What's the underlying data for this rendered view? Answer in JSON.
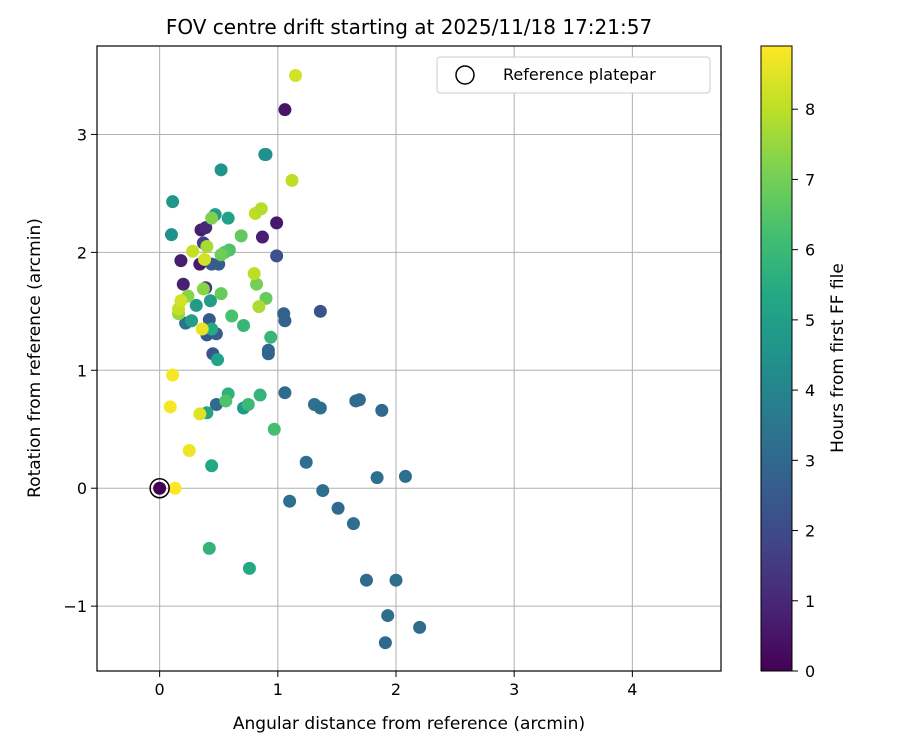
{
  "chart_data": {
    "type": "scatter",
    "title": "FOV centre drift starting at 2025/11/18 17:21:57",
    "xlabel": "Angular distance from reference (arcmin)",
    "ylabel": "Rotation from reference (arcmin)",
    "xlim": [
      -0.53,
      4.75
    ],
    "ylim": [
      -1.55,
      3.75
    ],
    "xticks": [
      0,
      1,
      2,
      3,
      4
    ],
    "xtick_labels": [
      "0",
      "1",
      "2",
      "3",
      "4"
    ],
    "yticks": [
      -1,
      0,
      1,
      2,
      3
    ],
    "ytick_labels": [
      "−1",
      "0",
      "1",
      "2",
      "3"
    ],
    "grid": true,
    "legend": {
      "position": "top-right",
      "label": "Reference platepar"
    },
    "reference": {
      "x": 0.0,
      "y": 0.0
    },
    "colorbar": {
      "label": "Hours from first FF file",
      "min": 0,
      "max": 8.9,
      "ticks": [
        0,
        1,
        2,
        3,
        4,
        5,
        6,
        7,
        8
      ],
      "tick_labels": [
        "0",
        "1",
        "2",
        "3",
        "4",
        "5",
        "6",
        "7",
        "8"
      ],
      "colormap": "viridis"
    },
    "points": [
      {
        "x": 1.06,
        "y": 3.21,
        "c": 0.5
      },
      {
        "x": 0.99,
        "y": 2.25,
        "c": 0.6
      },
      {
        "x": 0.87,
        "y": 2.13,
        "c": 0.8
      },
      {
        "x": 0.35,
        "y": 2.19,
        "c": 0.7
      },
      {
        "x": 0.39,
        "y": 2.21,
        "c": 1.0
      },
      {
        "x": 0.34,
        "y": 1.9,
        "c": 0.6
      },
      {
        "x": 0.18,
        "y": 1.93,
        "c": 0.7
      },
      {
        "x": 0.2,
        "y": 1.73,
        "c": 0.8
      },
      {
        "x": 0.37,
        "y": 2.08,
        "c": 1.7
      },
      {
        "x": 0.39,
        "y": 1.7,
        "c": 1.4
      },
      {
        "x": 0.99,
        "y": 1.97,
        "c": 2.2
      },
      {
        "x": 1.36,
        "y": 1.5,
        "c": 2.3
      },
      {
        "x": 0.45,
        "y": 1.14,
        "c": 2.4
      },
      {
        "x": 0.4,
        "y": 1.3,
        "c": 2.5
      },
      {
        "x": 0.42,
        "y": 1.43,
        "c": 2.5
      },
      {
        "x": 0.48,
        "y": 1.31,
        "c": 2.6
      },
      {
        "x": 0.44,
        "y": 1.9,
        "c": 2.6
      },
      {
        "x": 0.5,
        "y": 1.9,
        "c": 2.6
      },
      {
        "x": 1.05,
        "y": 1.48,
        "c": 2.8
      },
      {
        "x": 1.06,
        "y": 1.42,
        "c": 2.8
      },
      {
        "x": 0.92,
        "y": 1.17,
        "c": 2.9
      },
      {
        "x": 0.92,
        "y": 1.14,
        "c": 2.9
      },
      {
        "x": 0.22,
        "y": 1.4,
        "c": 3.3
      },
      {
        "x": 0.48,
        "y": 0.71,
        "c": 3.1
      },
      {
        "x": 1.06,
        "y": 0.81,
        "c": 3.1
      },
      {
        "x": 1.31,
        "y": 0.71,
        "c": 3.3
      },
      {
        "x": 1.36,
        "y": 0.68,
        "c": 3.2
      },
      {
        "x": 1.66,
        "y": 0.74,
        "c": 3.1
      },
      {
        "x": 1.69,
        "y": 0.75,
        "c": 3.1
      },
      {
        "x": 1.88,
        "y": 0.66,
        "c": 3.0
      },
      {
        "x": 1.24,
        "y": 0.22,
        "c": 3.2
      },
      {
        "x": 1.84,
        "y": 0.09,
        "c": 3.3
      },
      {
        "x": 2.08,
        "y": 0.1,
        "c": 3.2
      },
      {
        "x": 1.1,
        "y": -0.11,
        "c": 3.2
      },
      {
        "x": 1.38,
        "y": -0.02,
        "c": 3.2
      },
      {
        "x": 1.51,
        "y": -0.17,
        "c": 3.1
      },
      {
        "x": 1.64,
        "y": -0.3,
        "c": 3.2
      },
      {
        "x": 1.75,
        "y": -0.78,
        "c": 3.1
      },
      {
        "x": 2.0,
        "y": -0.78,
        "c": 3.2
      },
      {
        "x": 1.93,
        "y": -1.08,
        "c": 3.2
      },
      {
        "x": 1.91,
        "y": -1.31,
        "c": 3.0
      },
      {
        "x": 2.2,
        "y": -1.18,
        "c": 3.1
      },
      {
        "x": 0.9,
        "y": 2.83,
        "c": 4.5
      },
      {
        "x": 0.89,
        "y": 2.83,
        "c": 4.4
      },
      {
        "x": 0.52,
        "y": 2.7,
        "c": 4.6
      },
      {
        "x": 0.11,
        "y": 2.43,
        "c": 4.7
      },
      {
        "x": 0.1,
        "y": 2.15,
        "c": 4.4
      },
      {
        "x": 0.47,
        "y": 2.32,
        "c": 4.9
      },
      {
        "x": 0.58,
        "y": 2.29,
        "c": 5.1
      },
      {
        "x": 0.43,
        "y": 1.59,
        "c": 4.9
      },
      {
        "x": 0.31,
        "y": 1.55,
        "c": 4.8
      },
      {
        "x": 0.27,
        "y": 1.42,
        "c": 4.9
      },
      {
        "x": 0.49,
        "y": 1.09,
        "c": 5.1
      },
      {
        "x": 0.44,
        "y": 1.35,
        "c": 5.4
      },
      {
        "x": 0.71,
        "y": 0.68,
        "c": 4.8
      },
      {
        "x": 0.4,
        "y": 0.64,
        "c": 5.2
      },
      {
        "x": 0.44,
        "y": 0.19,
        "c": 5.3
      },
      {
        "x": 0.76,
        "y": -0.68,
        "c": 5.4
      },
      {
        "x": 0.42,
        "y": -0.51,
        "c": 5.8
      },
      {
        "x": 0.58,
        "y": 0.8,
        "c": 5.7
      },
      {
        "x": 0.85,
        "y": 0.79,
        "c": 5.8
      },
      {
        "x": 0.75,
        "y": 0.71,
        "c": 6.0
      },
      {
        "x": 0.94,
        "y": 1.28,
        "c": 5.9
      },
      {
        "x": 0.71,
        "y": 1.38,
        "c": 5.9
      },
      {
        "x": 0.61,
        "y": 1.46,
        "c": 6.3
      },
      {
        "x": 0.56,
        "y": 0.74,
        "c": 6.4
      },
      {
        "x": 0.97,
        "y": 0.5,
        "c": 6.2
      },
      {
        "x": 0.59,
        "y": 2.02,
        "c": 6.4
      },
      {
        "x": 0.55,
        "y": 2.0,
        "c": 6.5
      },
      {
        "x": 0.69,
        "y": 2.14,
        "c": 6.7
      },
      {
        "x": 0.52,
        "y": 1.98,
        "c": 6.9
      },
      {
        "x": 0.9,
        "y": 1.61,
        "c": 6.8
      },
      {
        "x": 0.82,
        "y": 1.73,
        "c": 7.0
      },
      {
        "x": 0.52,
        "y": 1.65,
        "c": 6.8
      },
      {
        "x": 0.44,
        "y": 2.29,
        "c": 7.2
      },
      {
        "x": 0.24,
        "y": 1.63,
        "c": 7.3
      },
      {
        "x": 0.37,
        "y": 1.69,
        "c": 7.3
      },
      {
        "x": 0.16,
        "y": 1.48,
        "c": 7.5
      },
      {
        "x": 0.4,
        "y": 2.05,
        "c": 7.7
      },
      {
        "x": 0.84,
        "y": 1.54,
        "c": 7.8
      },
      {
        "x": 0.8,
        "y": 1.82,
        "c": 8.0
      },
      {
        "x": 0.81,
        "y": 2.33,
        "c": 8.0
      },
      {
        "x": 0.86,
        "y": 2.37,
        "c": 7.9
      },
      {
        "x": 0.28,
        "y": 2.01,
        "c": 8.1
      },
      {
        "x": 0.38,
        "y": 1.94,
        "c": 8.3
      },
      {
        "x": 1.12,
        "y": 2.61,
        "c": 8.0
      },
      {
        "x": 0.16,
        "y": 1.52,
        "c": 8.1
      },
      {
        "x": 0.18,
        "y": 1.59,
        "c": 8.3
      },
      {
        "x": 1.15,
        "y": 3.5,
        "c": 8.3
      },
      {
        "x": 0.36,
        "y": 1.35,
        "c": 8.6
      },
      {
        "x": 0.34,
        "y": 0.63,
        "c": 8.5
      },
      {
        "x": 0.11,
        "y": 0.96,
        "c": 8.8
      },
      {
        "x": 0.09,
        "y": 0.69,
        "c": 8.8
      },
      {
        "x": 0.25,
        "y": 0.32,
        "c": 8.7
      },
      {
        "x": 0.13,
        "y": 0.0,
        "c": 8.9
      }
    ]
  }
}
